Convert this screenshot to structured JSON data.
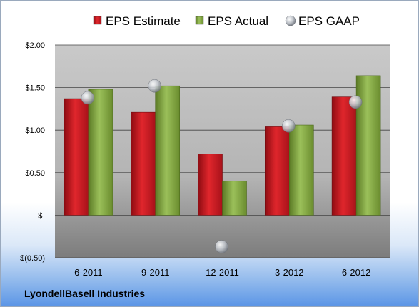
{
  "chart_data": {
    "type": "bar",
    "categories": [
      "6-2011",
      "9-2011",
      "12-2011",
      "3-2012",
      "6-2012"
    ],
    "series": [
      {
        "name": "EPS Estimate",
        "kind": "bar",
        "color": "#c0141c",
        "values": [
          1.37,
          1.21,
          0.72,
          1.04,
          1.39
        ]
      },
      {
        "name": "EPS Actual",
        "kind": "bar",
        "color": "#7a9a3a",
        "values": [
          1.48,
          1.52,
          0.4,
          1.06,
          1.64
        ]
      },
      {
        "name": "EPS GAAP",
        "kind": "marker",
        "color": "#b8bcc4",
        "values": [
          1.38,
          1.52,
          -0.37,
          1.05,
          1.33
        ]
      }
    ],
    "ylim": [
      -0.5,
      2.0
    ],
    "yticks": [
      2.0,
      1.5,
      1.0,
      0.5,
      0.0,
      -0.5
    ],
    "ytick_labels": [
      "$2.00",
      "$1.50",
      "$1.00",
      "$0.50",
      "$-",
      "$(0.50)"
    ],
    "grid": true,
    "legend_position": "top"
  },
  "company": "LyondellBasell Industries"
}
